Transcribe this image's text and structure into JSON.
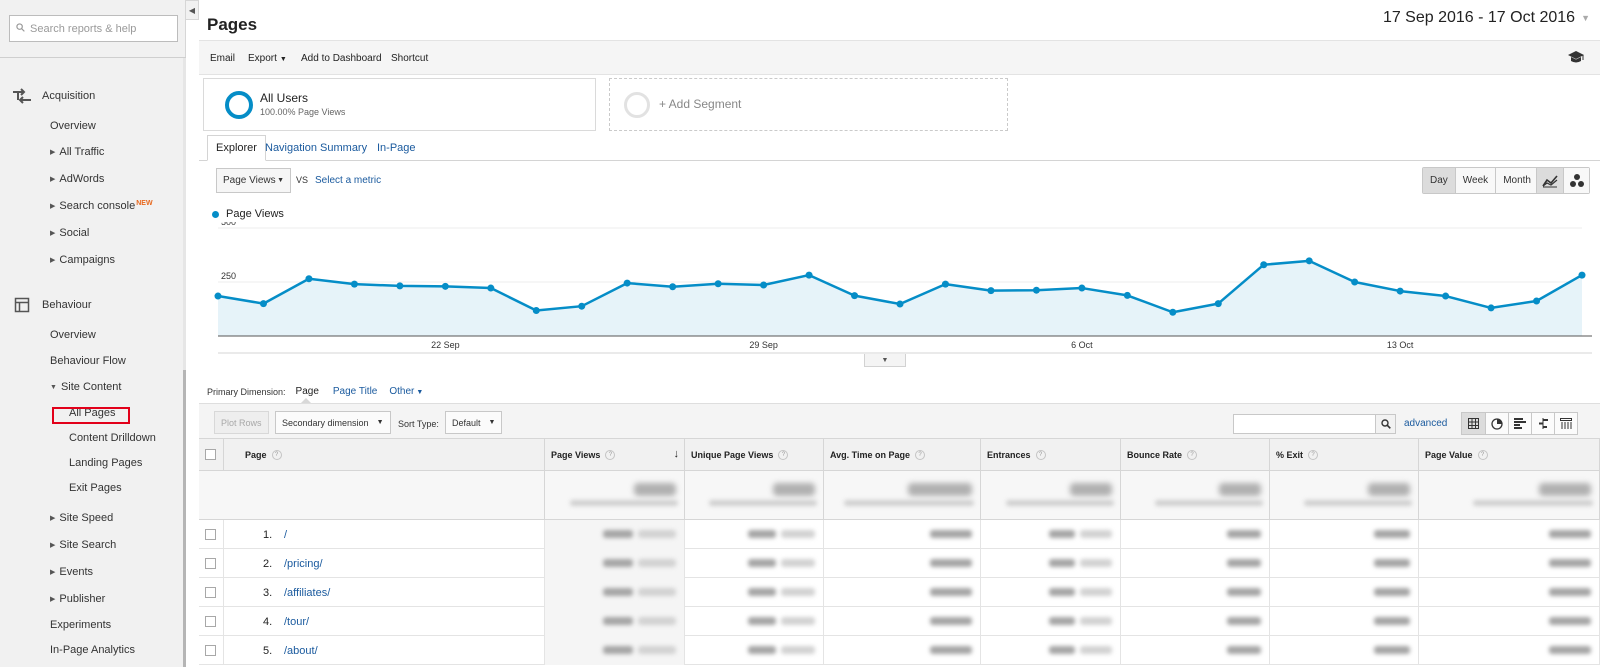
{
  "sidebar": {
    "search_placeholder": "Search reports & help",
    "sections": [
      {
        "label": "Acquisition",
        "icon": "acquisition-arrows-icon"
      },
      {
        "label": "Behaviour",
        "icon": "behaviour-layout-icon"
      }
    ],
    "acquisition_items": [
      {
        "label": "Overview"
      },
      {
        "label": "All Traffic"
      },
      {
        "label": "AdWords"
      },
      {
        "label": "Search console",
        "badge": "NEW"
      },
      {
        "label": "Social"
      },
      {
        "label": "Campaigns"
      }
    ],
    "behaviour_items": [
      {
        "label": "Overview"
      },
      {
        "label": "Behaviour Flow"
      },
      {
        "label": "Site Content"
      },
      {
        "label": "Site Speed"
      },
      {
        "label": "Site Search"
      },
      {
        "label": "Events"
      },
      {
        "label": "Publisher"
      },
      {
        "label": "Experiments"
      },
      {
        "label": "In-Page Analytics"
      }
    ],
    "site_content_items": [
      {
        "label": "All Pages"
      },
      {
        "label": "Content Drilldown"
      },
      {
        "label": "Landing Pages"
      },
      {
        "label": "Exit Pages"
      }
    ]
  },
  "header": {
    "title": "Pages",
    "date_range": "17 Sep 2016 - 17 Oct 2016"
  },
  "toolbar": {
    "email": "Email",
    "export": "Export",
    "add_dashboard": "Add to Dashboard",
    "shortcut": "Shortcut"
  },
  "segments": {
    "all_users_name": "All Users",
    "all_users_sub": "100.00% Page Views",
    "add_segment": "+ Add Segment"
  },
  "tabs": [
    {
      "label": "Explorer",
      "active": true
    },
    {
      "label": "Navigation Summary"
    },
    {
      "label": "In-Page"
    }
  ],
  "chart_controls": {
    "metric": "Page Views",
    "vs": "VS",
    "select_metric": "Select a metric",
    "periods": [
      "Day",
      "Week",
      "Month"
    ],
    "active_period": "Day"
  },
  "chart_data": {
    "type": "area",
    "series": [
      {
        "name": "Page Views",
        "values": [
          185,
          150,
          265,
          240,
          232,
          230,
          222,
          118,
          138,
          245,
          228,
          242,
          236,
          282,
          187,
          148,
          240,
          210,
          212,
          222,
          188,
          110,
          150,
          330,
          348,
          250,
          208,
          185,
          130,
          162,
          282
        ]
      }
    ],
    "x": [
      "17 Sep",
      "18 Sep",
      "19 Sep",
      "20 Sep",
      "21 Sep",
      "22 Sep",
      "23 Sep",
      "24 Sep",
      "25 Sep",
      "26 Sep",
      "27 Sep",
      "28 Sep",
      "29 Sep",
      "30 Sep",
      "1 Oct",
      "2 Oct",
      "3 Oct",
      "4 Oct",
      "5 Oct",
      "6 Oct",
      "7 Oct",
      "8 Oct",
      "9 Oct",
      "10 Oct",
      "11 Oct",
      "12 Oct",
      "13 Oct",
      "14 Oct",
      "15 Oct",
      "16 Oct",
      "17 Oct"
    ],
    "x_tick_labels": [
      "22 Sep",
      "29 Sep",
      "6 Oct",
      "13 Oct"
    ],
    "y_tick_labels": [
      "500",
      "250"
    ],
    "ylim": [
      0,
      500
    ],
    "color": "#058dc7",
    "fill": "#e6f3f9",
    "legend": "top-left",
    "grid": true
  },
  "table_controls": {
    "primary_dimension_label": "Primary Dimension:",
    "dim_page": "Page",
    "dim_page_title": "Page Title",
    "dim_other": "Other",
    "plot_rows": "Plot Rows",
    "secondary_dimension": "Secondary dimension",
    "sort_type_label": "Sort Type:",
    "sort_type": "Default",
    "advanced": "advanced"
  },
  "table": {
    "columns": [
      "Page",
      "Page Views",
      "Unique Page Views",
      "Avg. Time on Page",
      "Entrances",
      "Bounce Rate",
      "% Exit",
      "Page Value"
    ],
    "rows": [
      {
        "num": "1.",
        "page": "/"
      },
      {
        "num": "2.",
        "page": "/pricing/"
      },
      {
        "num": "3.",
        "page": "/affiliates/"
      },
      {
        "num": "4.",
        "page": "/tour/"
      },
      {
        "num": "5.",
        "page": "/about/"
      }
    ]
  },
  "colors": {
    "accent_blue": "#058dc7",
    "link_blue": "#1a5a9e",
    "highlight_red": "#e2001a",
    "new_badge": "#e8681d"
  }
}
